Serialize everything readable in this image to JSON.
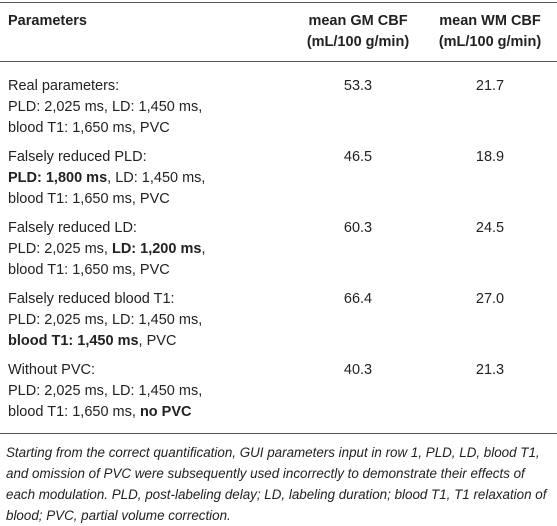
{
  "table": {
    "header": [
      [
        [
          {
            "text": "Parameters"
          }
        ]
      ],
      [
        [
          {
            "text": "mean GM CBF"
          }
        ],
        [
          {
            "text": "(mL/100 g/min)"
          }
        ]
      ],
      [
        [
          {
            "text": "mean WM CBF"
          }
        ],
        [
          {
            "text": "(mL/100 g/min)"
          }
        ]
      ]
    ],
    "rows": [
      [
        [
          [
            {
              "text": "Real parameters:"
            }
          ],
          [
            {
              "text": "PLD: 2,025 ms, LD: 1,450 ms,"
            }
          ],
          [
            {
              "text": "blood T1: 1,650 ms, PVC"
            }
          ]
        ],
        "53.3",
        "21.7"
      ],
      [
        [
          [
            {
              "text": "Falsely reduced PLD:"
            }
          ],
          [
            {
              "text": "PLD: 1,800 ms",
              "bold": true
            },
            {
              "text": ", LD: 1,450 ms,"
            }
          ],
          [
            {
              "text": "blood T1: 1,650 ms, PVC"
            }
          ]
        ],
        "46.5",
        "18.9"
      ],
      [
        [
          [
            {
              "text": "Falsely reduced LD:"
            }
          ],
          [
            {
              "text": "PLD: 2,025 ms, "
            },
            {
              "text": "LD: 1,200 ms",
              "bold": true
            },
            {
              "text": ","
            }
          ],
          [
            {
              "text": "blood T1: 1,650 ms, PVC"
            }
          ]
        ],
        "60.3",
        "24.5"
      ],
      [
        [
          [
            {
              "text": "Falsely reduced blood T1:"
            }
          ],
          [
            {
              "text": "PLD: 2,025 ms, LD: 1,450 ms,"
            }
          ],
          [
            {
              "text": "blood T1: 1,450 ms",
              "bold": true
            },
            {
              "text": ", PVC"
            }
          ]
        ],
        "66.4",
        "27.0"
      ],
      [
        [
          [
            {
              "text": "Without PVC:"
            }
          ],
          [
            {
              "text": "PLD: 2,025 ms, LD: 1,450 ms,"
            }
          ],
          [
            {
              "text": "blood T1: 1,650 ms, "
            },
            {
              "text": "no PVC",
              "bold": true
            }
          ]
        ],
        "40.3",
        "21.3"
      ]
    ],
    "footnote": "Starting from the correct quantification, GUI parameters input in row 1, PLD, LD, blood T1, and omission of PVC were subsequently used incorrectly to demonstrate their effects of each modulation. PLD, post-labeling delay; LD, labeling duration; blood T1, T1 relaxation of blood; PVC, partial volume correction."
  }
}
